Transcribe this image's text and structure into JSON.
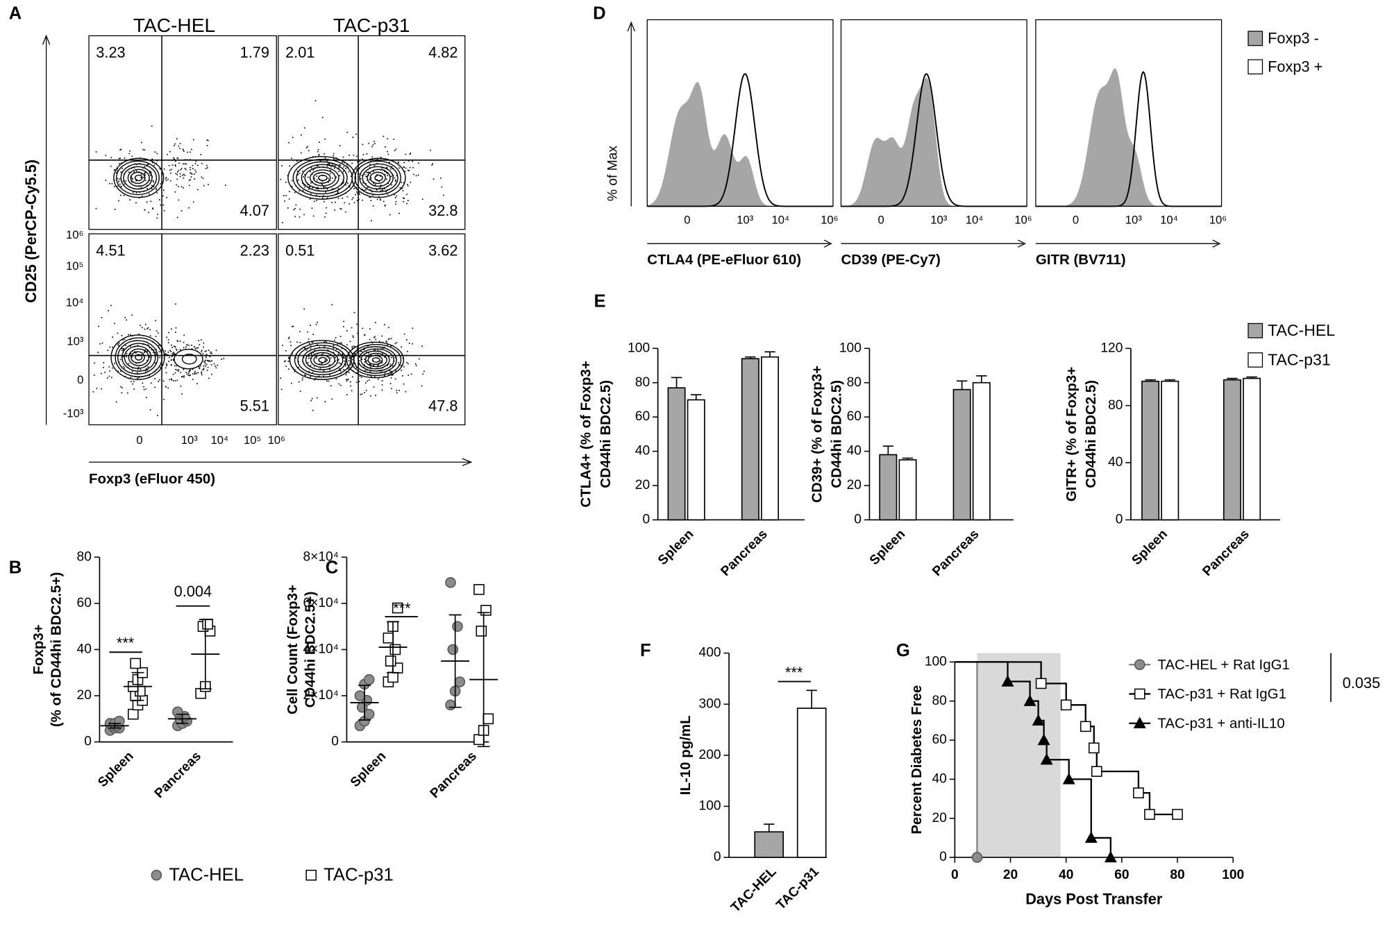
{
  "flow_cytometry": {
    "panel": "A",
    "columns": [
      "TAC-HEL",
      "TAC-p31"
    ],
    "y_label": "CD25 (PerCP-Cy5.5)",
    "x_label": "Foxp3 (eFluor 450)",
    "y_ticks": [
      "10⁶",
      "10⁵",
      "10⁴",
      "10³",
      "0",
      "-10³"
    ],
    "x_ticks": [
      "0",
      "10³",
      "10⁴",
      "10⁵",
      "10⁶"
    ],
    "plots": [
      [
        "3.23",
        "1.79",
        "4.07"
      ],
      [
        "2.01",
        "4.82",
        "32.8"
      ],
      [
        "4.51",
        "2.23",
        "5.51"
      ],
      [
        "0.51",
        "3.62",
        "47.8"
      ]
    ]
  },
  "histograms": {
    "panel": "D",
    "y_label": "% of Max",
    "x_labels": [
      "CTLA4 (PE-eFluor 610)",
      "CD39 (PE-Cy7)",
      "GITR (BV711)"
    ],
    "x_ticks": [
      "0",
      "10³",
      "10⁴",
      "10⁶"
    ],
    "legend": [
      "Foxp3 -",
      "Foxp3 +"
    ]
  },
  "chart_data": [
    {
      "type": "dot",
      "panel": "B",
      "y_label": [
        "Foxp3+",
        "(% of CD44hi BDC2.5+)"
      ],
      "categories": [
        "Spleen",
        "Pancreas"
      ],
      "series": [
        {
          "name": "TAC-HEL",
          "color": "#8c8c8c",
          "marker": "circle",
          "values": [
            [
              5,
              6,
              6,
              7,
              7,
              8,
              8,
              9
            ],
            [
              7,
              8,
              9,
              10,
              11,
              13
            ]
          ],
          "means": [
            7,
            10
          ],
          "sds": [
            1,
            2
          ]
        },
        {
          "name": "TAC-p31",
          "color": "#ffffff",
          "marker": "square",
          "values": [
            [
              12,
              16,
              18,
              20,
              22,
              24,
              27,
              30,
              34
            ],
            [
              21,
              24,
              48,
              50,
              51
            ]
          ],
          "means": [
            24,
            38
          ],
          "sds": [
            6,
            15
          ]
        }
      ],
      "ylim": [
        0,
        80
      ],
      "yticks": [
        0,
        20,
        40,
        60,
        80
      ],
      "annotations": [
        "***",
        "0.004"
      ]
    },
    {
      "type": "dot",
      "panel": "C",
      "y_label": [
        "Cell Count (Foxp3+",
        "CD44hi BDC2.5+)"
      ],
      "categories": [
        "Spleen",
        "Pancreas"
      ],
      "series": [
        {
          "color": "#8c8c8c",
          "marker": "circle",
          "values": [
            [
              7000,
              9000,
              12000,
              15000,
              18000,
              20000,
              25000,
              27000
            ],
            [
              16000,
              22000,
              26000,
              40000,
              50000,
              69000
            ]
          ],
          "means": [
            17000,
            35000
          ],
          "sds": [
            7500,
            20000
          ]
        },
        {
          "color": "#ffffff",
          "marker": "square",
          "values": [
            [
              26000,
              28000,
              32000,
              35000,
              40000,
              45000,
              50000,
              58000
            ],
            [
              1000,
              5000,
              10000,
              48000,
              57000,
              66000
            ]
          ],
          "means": [
            41000,
            27000
          ],
          "sds": [
            11000,
            29000
          ]
        }
      ],
      "ylim": [
        0,
        80000
      ],
      "yticks": [
        0,
        {
          "value": 20000,
          "label": "2×10⁴"
        },
        {
          "value": 40000,
          "label": "4×10⁴"
        },
        {
          "value": 60000,
          "label": "6×10⁴"
        },
        {
          "value": 80000,
          "label": "8×10⁴"
        }
      ],
      "annotations": [
        "***"
      ]
    },
    {
      "type": "bar",
      "panel": "E",
      "y_label": [
        "CTLA4+ (% of Foxp3+",
        "CD44hi BDC2.5)"
      ],
      "categories": [
        "Spleen",
        "Pancreas"
      ],
      "series": [
        {
          "name": "TAC-HEL",
          "color": "#a6a6a6",
          "values": [
            77,
            94
          ],
          "errors": [
            6,
            1
          ]
        },
        {
          "name": "TAC-p31",
          "color": "#ffffff",
          "values": [
            70,
            95
          ],
          "errors": [
            3,
            3
          ]
        }
      ],
      "ylim": [
        0,
        100
      ],
      "yticks": [
        0,
        20,
        40,
        60,
        80,
        100
      ]
    },
    {
      "type": "bar",
      "y_label": [
        "CD39+ (% of Foxp3+",
        "CD44hi BDC2.5)"
      ],
      "categories": [
        "Spleen",
        "Pancreas"
      ],
      "series": [
        {
          "color": "#a6a6a6",
          "values": [
            38,
            76
          ],
          "errors": [
            5,
            5
          ]
        },
        {
          "color": "#ffffff",
          "values": [
            35,
            80
          ],
          "errors": [
            1,
            4
          ]
        }
      ],
      "ylim": [
        0,
        100
      ],
      "yticks": [
        0,
        20,
        40,
        60,
        80,
        100
      ]
    },
    {
      "type": "bar",
      "y_label": [
        "GITR+ (% of Foxp3+",
        "CD44hi BDC2.5)"
      ],
      "categories": [
        "Spleen",
        "Pancreas"
      ],
      "series": [
        {
          "color": "#a6a6a6",
          "values": [
            97,
            98
          ],
          "errors": [
            1,
            1
          ]
        },
        {
          "color": "#ffffff",
          "values": [
            97,
            99
          ],
          "errors": [
            1,
            1
          ]
        }
      ],
      "ylim": [
        0,
        120
      ],
      "yticks": [
        0,
        40,
        80,
        120
      ]
    },
    {
      "type": "bar",
      "panel": "F",
      "y_label": [
        "IL-10 pg/mL"
      ],
      "categories": [
        "TAC-HEL",
        "TAC-p31"
      ],
      "series": [
        {
          "colors": [
            "#a6a6a6",
            "#ffffff"
          ],
          "values": [
            50,
            292
          ],
          "errors": [
            15,
            35
          ]
        }
      ],
      "ylim": [
        0,
        400
      ],
      "yticks": [
        0,
        100,
        200,
        300,
        400
      ],
      "annotations": [
        "***"
      ]
    },
    {
      "type": "step",
      "panel": "G",
      "x_label": "Days Post Transfer",
      "y_label": [
        "Percent Diabetes Free"
      ],
      "xlim": [
        0,
        100
      ],
      "xticks": [
        0,
        20,
        40,
        60,
        80,
        100
      ],
      "ylim": [
        0,
        100
      ],
      "yticks": [
        0,
        20,
        40,
        60,
        80,
        100
      ],
      "shade": [
        8,
        38
      ],
      "shade_color": "#d9d9d9",
      "series": [
        {
          "name": "TAC-HEL + Rat IgG1",
          "color": "#808080",
          "marker": "circle",
          "marker_color": "#8c8c8c",
          "x": [
            0,
            8
          ],
          "values": [
            100,
            0
          ]
        },
        {
          "name": "TAC-p31 + Rat IgG1",
          "color": "#000000",
          "marker": "square",
          "marker_color": "#ffffff",
          "x": [
            0,
            31,
            40,
            47,
            50,
            51,
            66,
            70,
            80
          ],
          "values": [
            100,
            89,
            78,
            67,
            56,
            44,
            33,
            22,
            22
          ]
        },
        {
          "name": "TAC-p31 + anti-IL10",
          "color": "#000000",
          "marker": "triangle",
          "marker_color": "#000000",
          "x": [
            0,
            19,
            27,
            30,
            32,
            33,
            41,
            49,
            56
          ],
          "values": [
            100,
            90,
            80,
            70,
            60,
            50,
            40,
            10,
            0
          ]
        }
      ],
      "annotations": [
        "0.035"
      ]
    }
  ]
}
